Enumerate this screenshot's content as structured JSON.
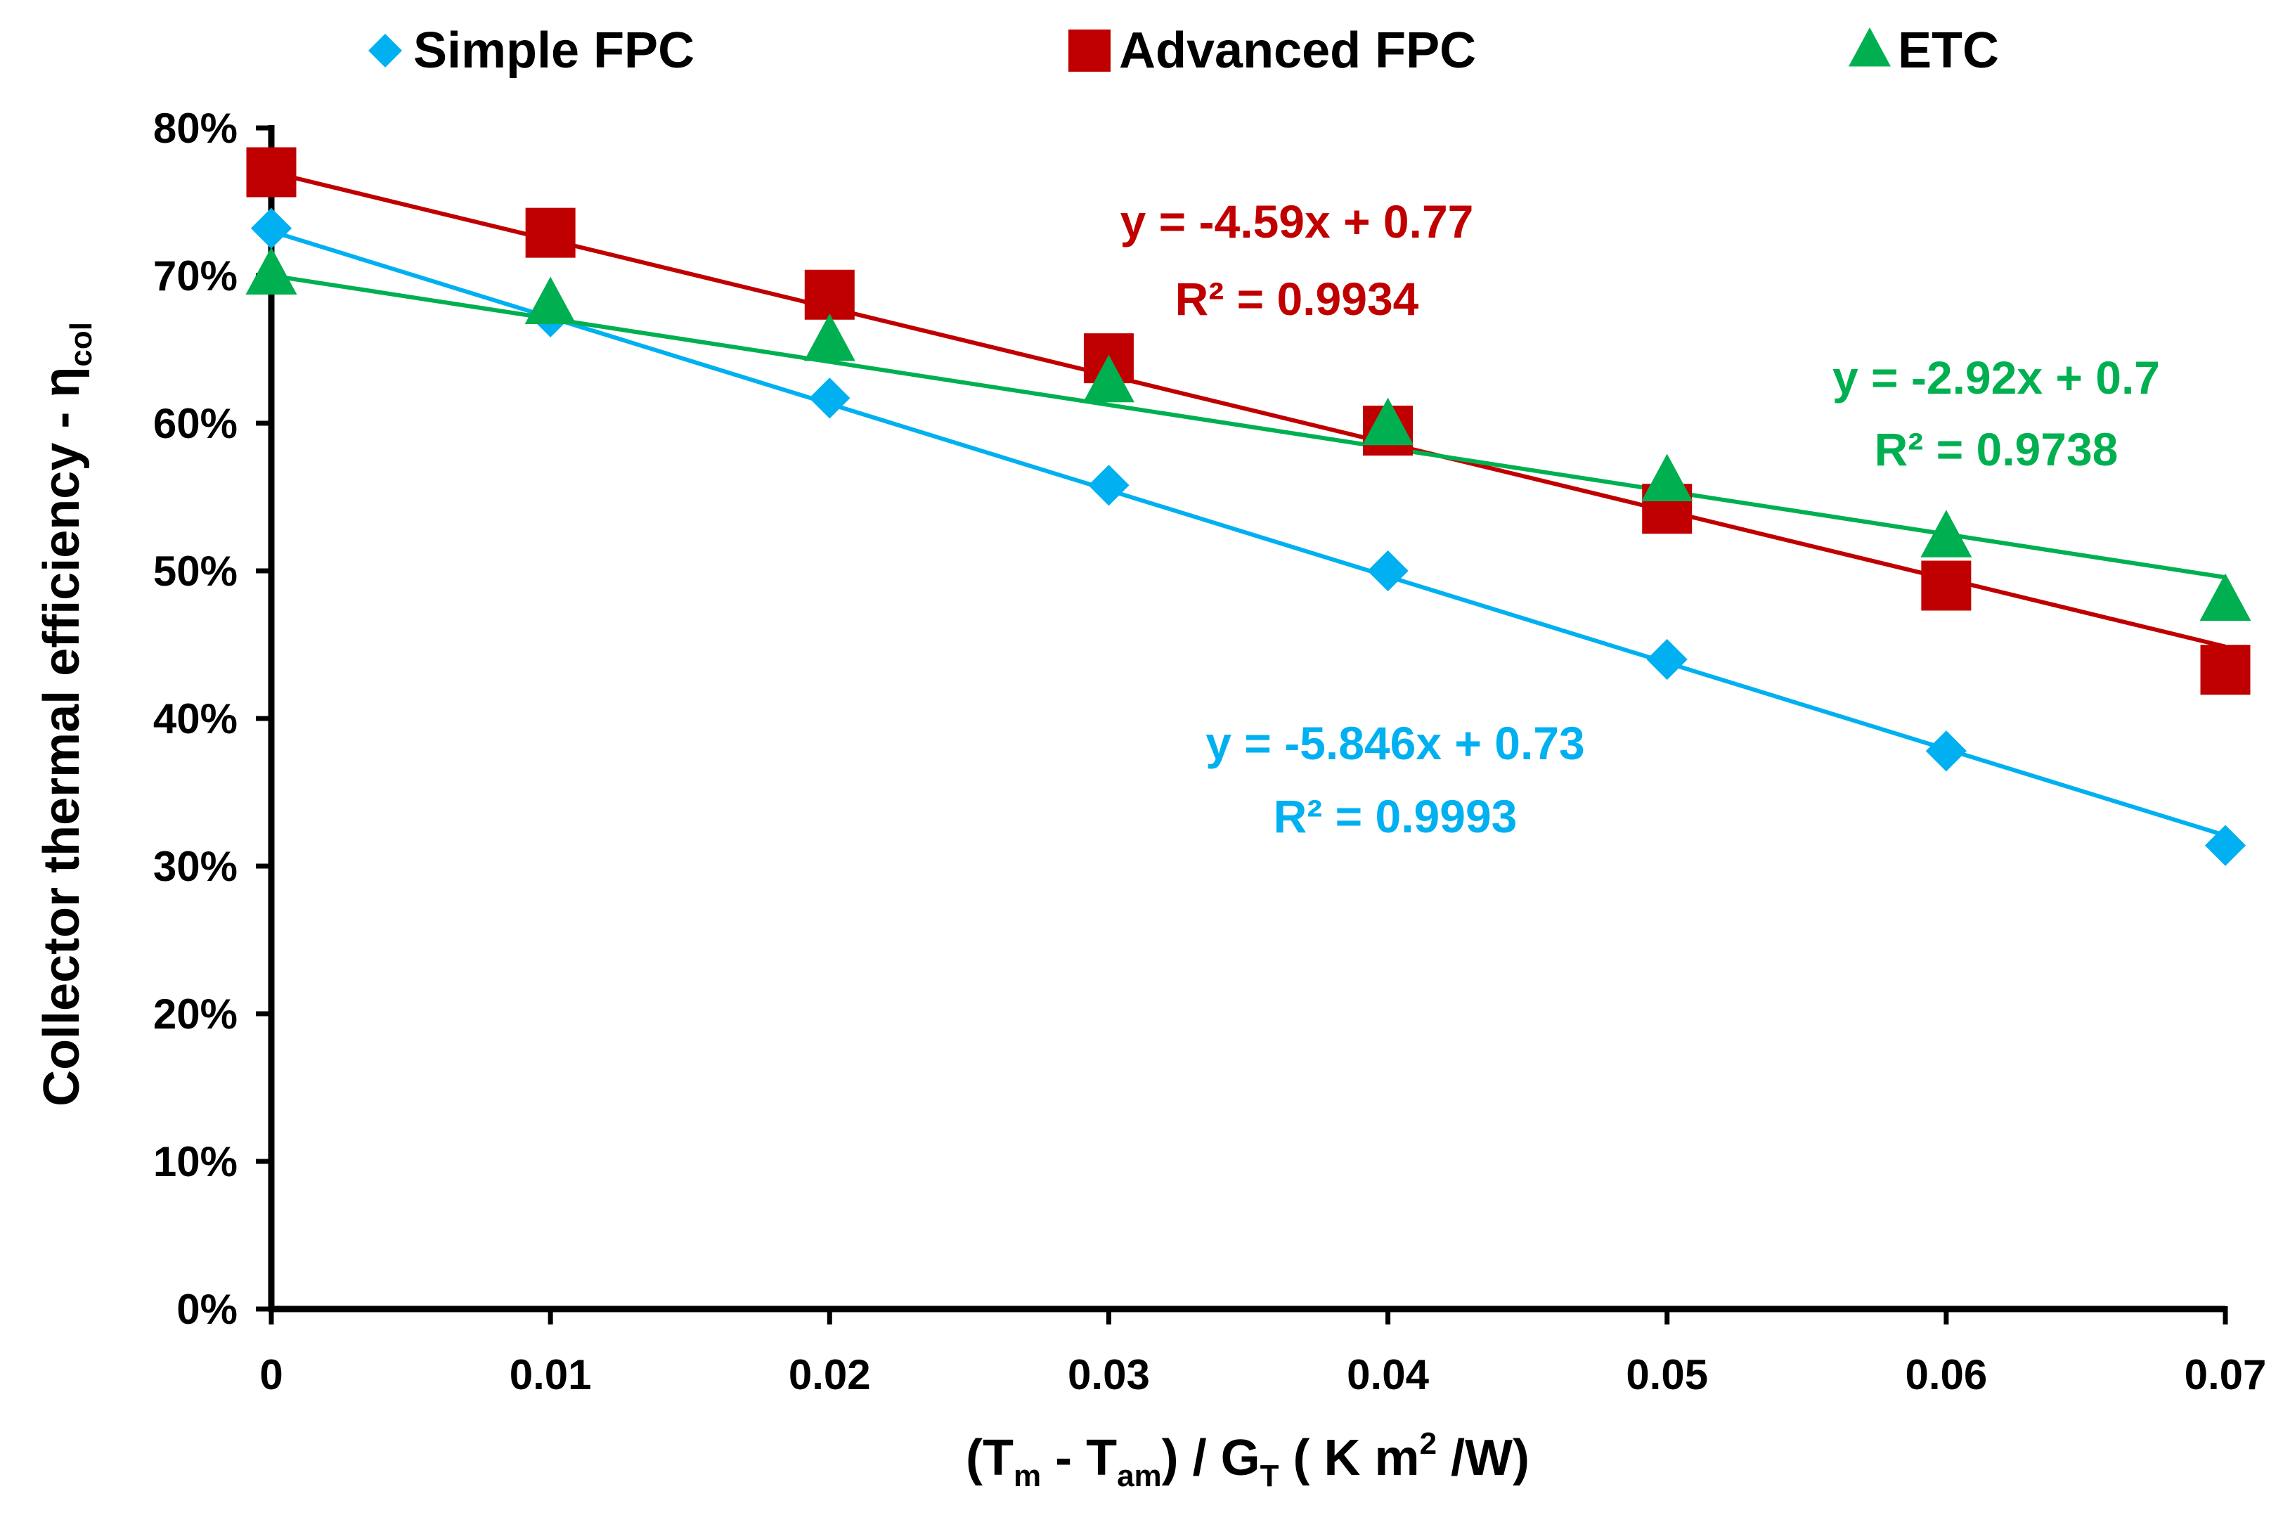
{
  "chart_data": {
    "type": "line",
    "x": [
      0,
      0.01,
      0.02,
      0.03,
      0.04,
      0.05,
      0.06,
      0.07
    ],
    "x_tick_labels": [
      "0",
      "0.01",
      "0.02",
      "0.03",
      "0.04",
      "0.05",
      "0.06",
      "0.07"
    ],
    "y_tick_labels": [
      "0%",
      "10%",
      "20%",
      "30%",
      "40%",
      "50%",
      "60%",
      "70%",
      "80%"
    ],
    "xlim": [
      0,
      0.07
    ],
    "ylim": [
      0,
      0.8
    ],
    "grid": false,
    "legend_position": "top",
    "series": [
      {
        "name": "Simple FPC",
        "color": "#00b0f0",
        "marker": "diamond",
        "values": [
          0.732,
          0.672,
          0.617,
          0.558,
          0.5,
          0.44,
          0.378,
          0.314
        ],
        "trendline": {
          "slope": -5.846,
          "intercept": 0.73
        },
        "equation": "y = -5.846x + 0.73",
        "r2": "R² = 0.9993"
      },
      {
        "name": "Advanced FPC",
        "color": "#c00000",
        "marker": "square",
        "values": [
          0.77,
          0.729,
          0.687,
          0.644,
          0.595,
          0.542,
          0.49,
          0.433
        ],
        "trendline": {
          "slope": -4.59,
          "intercept": 0.77
        },
        "equation": "y = -4.59x + 0.77",
        "r2": "R² = 0.9934"
      },
      {
        "name": "ETC",
        "color": "#00b050",
        "marker": "triangle",
        "values": [
          0.7,
          0.68,
          0.655,
          0.627,
          0.598,
          0.56,
          0.522,
          0.479
        ],
        "trendline": {
          "slope": -2.92,
          "intercept": 0.7
        },
        "equation": "y = -2.92x + 0.7",
        "r2": "R² = 0.9738"
      }
    ],
    "ylabel": {
      "main": "Collector thermal efficiency - η",
      "sub": "col"
    },
    "xlabel": {
      "p1": "(T",
      "p1_sub": "m",
      "p2": " - T",
      "p2_sub": "am",
      "p3": ") / G",
      "p3_sub": "T",
      "p4": " ( K m",
      "p4_sup": "2",
      "p5": " /W)"
    }
  }
}
